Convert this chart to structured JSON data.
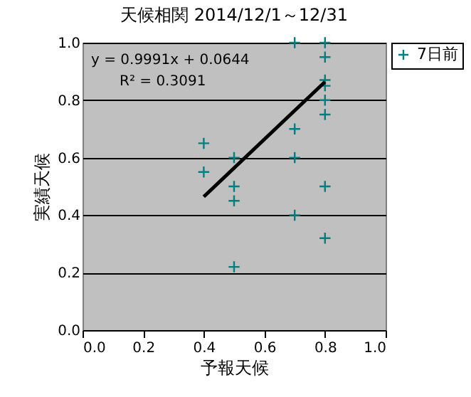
{
  "chart_data": {
    "type": "scatter",
    "title": "天候相関 2014/12/1～12/31",
    "xlabel": "予報天候",
    "ylabel": "実績天候",
    "annotations": [
      "y = 0.9991x + 0.0644",
      "R² = 0.3091"
    ],
    "series": [
      {
        "name": "7日前",
        "color": "#008080",
        "marker": "cross",
        "x": [
          0.4,
          0.4,
          0.5,
          0.5,
          0.5,
          0.5,
          0.7,
          0.7,
          0.7,
          0.7,
          0.8,
          0.8,
          0.8,
          0.8,
          0.8,
          0.8,
          0.8,
          0.8
        ],
        "values": [
          0.65,
          0.55,
          0.6,
          0.5,
          0.45,
          0.22,
          1.0,
          0.7,
          0.6,
          0.4,
          1.0,
          0.95,
          0.87,
          0.85,
          0.8,
          0.75,
          0.5,
          0.32
        ]
      },
      {
        "color": "#000000",
        "type": "line",
        "marker": "none",
        "x": [
          0.4,
          0.8
        ],
        "values": [
          0.464,
          0.864
        ]
      }
    ],
    "xlim": [
      0,
      1
    ],
    "ylim": [
      0,
      1
    ],
    "xticks": [
      {
        "value": 0,
        "label": "0.0"
      },
      0.2,
      0.4,
      0.6,
      0.8,
      {
        "value": 1,
        "label": "1.0"
      }
    ],
    "yticks": [
      {
        "value": 0,
        "label": "0.0"
      },
      0.2,
      0.4,
      0.6,
      0.8,
      {
        "value": 1,
        "label": "1.0"
      }
    ],
    "grid": "y",
    "legend": "right"
  }
}
